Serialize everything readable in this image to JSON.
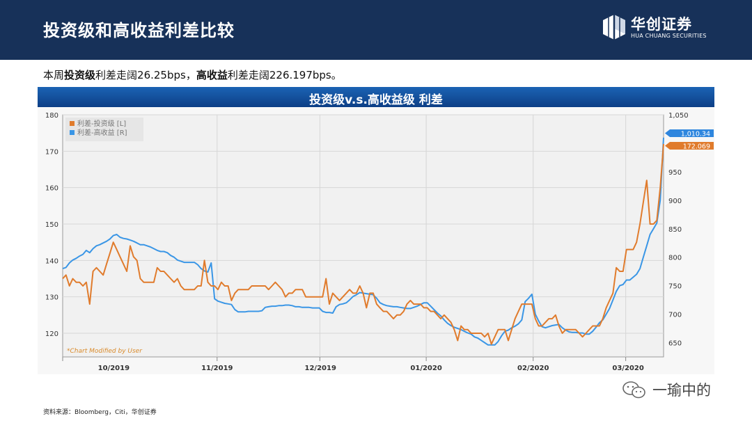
{
  "header": {
    "title": "投资级和高收益利差比较"
  },
  "logo": {
    "name_cn": "华创证券",
    "name_en": "HUA CHUANG SECURITIES"
  },
  "summary": {
    "prefix": "本周",
    "ig_label": "投资级",
    "ig_text": "利差走阔26.25bps，",
    "hy_label": "高收益",
    "hy_text": "利差走阔226.197bps。"
  },
  "banner": {
    "title": "投资级v.s.高收益级 利差"
  },
  "chart_data": {
    "type": "line",
    "title": "投资级v.s.高收益级 利差",
    "x_labels": [
      "10/2019",
      "11/2019",
      "12/2019",
      "01/2020",
      "02/2020",
      "03/2020"
    ],
    "left_axis": {
      "ticks": [
        "120",
        "130",
        "140",
        "150",
        "160",
        "170",
        "180"
      ],
      "ylim": [
        113.5,
        180
      ]
    },
    "right_axis": {
      "ticks": [
        "650",
        "700",
        "750",
        "800",
        "850",
        "900",
        "950",
        "1,050"
      ],
      "ylim": [
        625,
        1050
      ]
    },
    "legend": [
      "利差-投资级 [L]",
      "利差-高收益 [R]"
    ],
    "legend_position": "top-left",
    "grid": true,
    "note": "*Chart Modified by User",
    "last_values": {
      "ig": "172.069",
      "hy": "1,010.34"
    },
    "colors": {
      "ig": "#e07b2c",
      "hy": "#3a96e6"
    },
    "series": [
      {
        "name": "利差-投资级 [L]",
        "axis": "left",
        "values": [
          135,
          136,
          133,
          135,
          134,
          134,
          133,
          134,
          128,
          137,
          138,
          137,
          136,
          139,
          142,
          145,
          143,
          141,
          139,
          137,
          144,
          141,
          140,
          135,
          134,
          134,
          134,
          134,
          138,
          137,
          137,
          136,
          135,
          134,
          135,
          133,
          132,
          132,
          132,
          132,
          133,
          133,
          140,
          134,
          133,
          133,
          132,
          134,
          133,
          133,
          129,
          131,
          132,
          132,
          132,
          132,
          133,
          133,
          133,
          133,
          133,
          132,
          133,
          134,
          133,
          132,
          130,
          131,
          131,
          132,
          132,
          132,
          130,
          130,
          130,
          130,
          130,
          130,
          135,
          128,
          131,
          130,
          129,
          130,
          131,
          132,
          131,
          131,
          133,
          131,
          127,
          131,
          131,
          128,
          127,
          126,
          126,
          125,
          124,
          125,
          125,
          126,
          128,
          129,
          128,
          128,
          128,
          127,
          127,
          126,
          126,
          125,
          124,
          125,
          124,
          123,
          121,
          118,
          122,
          121,
          121,
          120,
          120,
          120,
          120,
          119,
          120,
          117,
          119,
          121,
          121,
          121,
          118,
          121,
          124,
          126,
          128,
          128,
          128,
          128,
          124,
          122,
          122,
          123,
          124,
          124,
          125,
          122,
          120,
          121,
          121,
          121,
          121,
          120,
          119,
          120,
          121,
          122,
          122,
          122,
          124,
          127,
          129,
          131,
          138,
          137,
          137,
          143,
          143,
          143,
          145,
          150,
          156,
          162,
          150,
          150,
          151,
          160,
          172
        ]
      },
      {
        "name": "利差-高收益 [R]",
        "axis": "right",
        "values": [
          780,
          782,
          790,
          795,
          798,
          802,
          805,
          812,
          808,
          815,
          820,
          822,
          825,
          828,
          832,
          838,
          840,
          835,
          833,
          832,
          830,
          828,
          825,
          822,
          822,
          820,
          818,
          815,
          812,
          810,
          810,
          808,
          803,
          800,
          795,
          793,
          791,
          791,
          791,
          791,
          787,
          780,
          776,
          774,
          790,
          727,
          723,
          721,
          719,
          718,
          717,
          708,
          704,
          704,
          704,
          705,
          705,
          705,
          705,
          706,
          712,
          713,
          714,
          714,
          715,
          715,
          716,
          716,
          715,
          713,
          713,
          712,
          712,
          712,
          711,
          711,
          711,
          705,
          703,
          703,
          702,
          713,
          717,
          718,
          720,
          725,
          731,
          734,
          738,
          737,
          736,
          735,
          734,
          728,
          720,
          717,
          715,
          714,
          713,
          713,
          712,
          711,
          710,
          710,
          712,
          714,
          717,
          720,
          720,
          714,
          708,
          702,
          697,
          690,
          684,
          680,
          677,
          675,
          673,
          670,
          667,
          665,
          660,
          658,
          654,
          650,
          646,
          646,
          646,
          652,
          662,
          670,
          672,
          676,
          679,
          683,
          690,
          722,
          728,
          735,
          700,
          688,
          678,
          676,
          678,
          680,
          681,
          682,
          676,
          672,
          669,
          668,
          668,
          667,
          667,
          665,
          665,
          670,
          677,
          685,
          690,
          700,
          710,
          725,
          740,
          750,
          752,
          760,
          760,
          765,
          770,
          780,
          800,
          820,
          840,
          850,
          860,
          900,
          1010
        ]
      }
    ]
  },
  "footer": {
    "source": "资料来源：Bloomberg，Citi，华创证券"
  },
  "watermark": {
    "text": "一瑜中的"
  }
}
